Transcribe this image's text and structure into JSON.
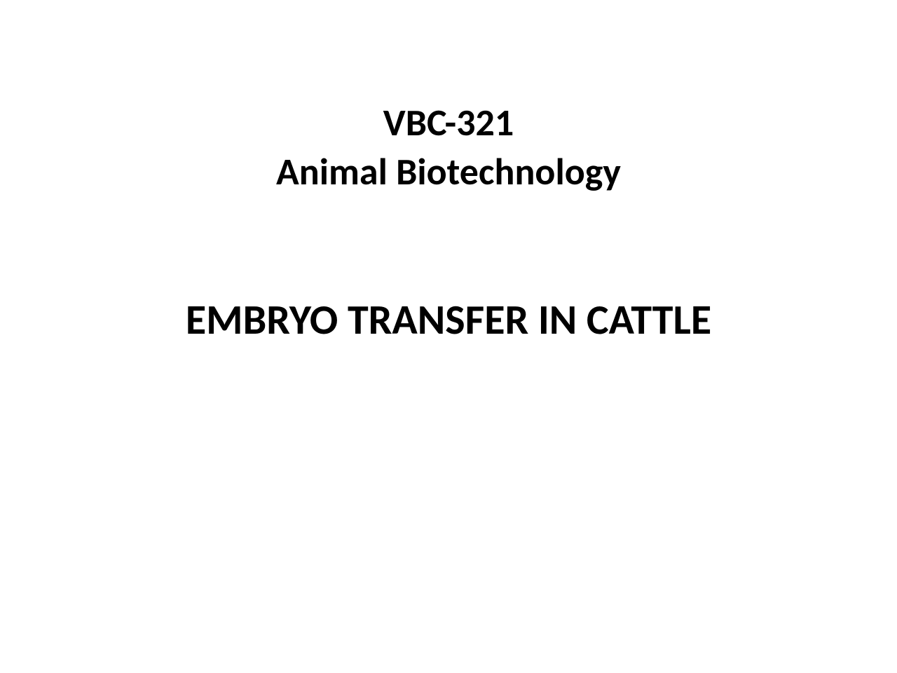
{
  "slide": {
    "course_code": "VBC-321",
    "course_name": "Animal Biotechnology",
    "main_title": "EMBRYO TRANSFER IN CATTLE",
    "background_color": "#ffffff",
    "text_color": "#000000",
    "header_fontsize": 54,
    "title_fontsize": 60,
    "font_weight": "bold",
    "font_family": "Calibri"
  }
}
